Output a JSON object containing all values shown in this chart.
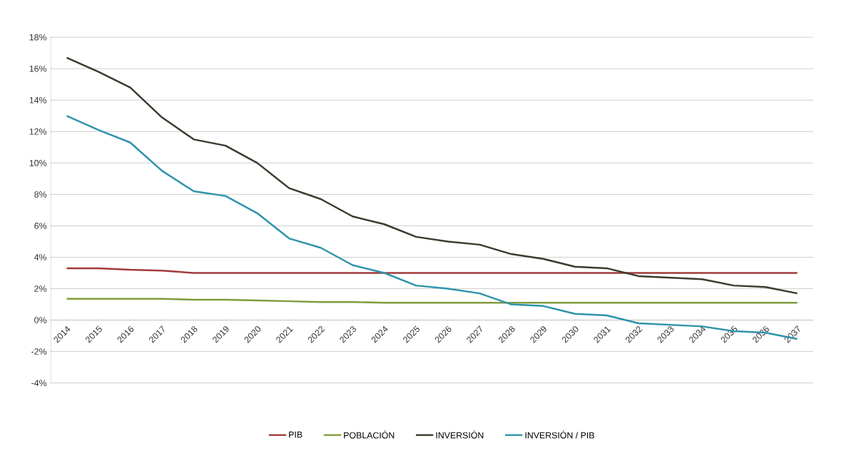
{
  "chart_data": {
    "type": "line",
    "categories": [
      "2014",
      "2015",
      "2016",
      "2017",
      "2018",
      "2019",
      "2020",
      "2021",
      "2022",
      "2023",
      "2024",
      "2025",
      "2026",
      "2027",
      "2028",
      "2029",
      "2030",
      "2031",
      "2032",
      "2033",
      "2034",
      "2035",
      "2036",
      "2037"
    ],
    "series": [
      {
        "name": "PIB",
        "color": "#a33a3a",
        "values": [
          3.3,
          3.3,
          3.2,
          3.15,
          3.0,
          3.0,
          3.0,
          3.0,
          3.0,
          3.0,
          3.0,
          3.0,
          3.0,
          3.0,
          3.0,
          3.0,
          3.0,
          3.0,
          3.0,
          3.0,
          3.0,
          3.0,
          3.0,
          3.0
        ]
      },
      {
        "name": "POBLACIÓN",
        "color": "#7f9c3a",
        "values": [
          1.35,
          1.35,
          1.35,
          1.35,
          1.3,
          1.3,
          1.25,
          1.2,
          1.15,
          1.15,
          1.1,
          1.1,
          1.1,
          1.1,
          1.1,
          1.1,
          1.1,
          1.1,
          1.1,
          1.1,
          1.1,
          1.1,
          1.1,
          1.1
        ]
      },
      {
        "name": "INVERSIÓN",
        "color": "#3a3a2e",
        "values": [
          16.7,
          15.8,
          14.8,
          12.9,
          11.5,
          11.1,
          10.0,
          8.4,
          7.7,
          6.6,
          6.1,
          5.3,
          5.0,
          4.8,
          4.2,
          3.9,
          3.4,
          3.3,
          2.8,
          2.7,
          2.6,
          2.2,
          2.1,
          1.7
        ]
      },
      {
        "name": "INVERSIÓN / PIB",
        "color": "#2e93ab",
        "values": [
          13.0,
          12.1,
          11.3,
          9.5,
          8.2,
          7.9,
          6.8,
          5.2,
          4.6,
          3.5,
          3.0,
          2.2,
          2.0,
          1.7,
          1.0,
          0.9,
          0.4,
          0.3,
          -0.2,
          -0.3,
          -0.4,
          -0.7,
          -0.8,
          -1.2
        ]
      }
    ],
    "ylim": [
      -4,
      18
    ],
    "yticks": [
      {
        "value": -4,
        "label": "-4%"
      },
      {
        "value": -2,
        "label": "-2%"
      },
      {
        "value": 0,
        "label": "0%"
      },
      {
        "value": 2,
        "label": "2%"
      },
      {
        "value": 4,
        "label": "4%"
      },
      {
        "value": 6,
        "label": "6%"
      },
      {
        "value": 8,
        "label": "8%"
      },
      {
        "value": 10,
        "label": "10%"
      },
      {
        "value": 12,
        "label": "12%"
      },
      {
        "value": 14,
        "label": "14%"
      },
      {
        "value": 16,
        "label": "16%"
      },
      {
        "value": 18,
        "label": "18%"
      }
    ],
    "grid": "y",
    "legend": "bottom",
    "marker": "none",
    "line_style": "solid"
  }
}
